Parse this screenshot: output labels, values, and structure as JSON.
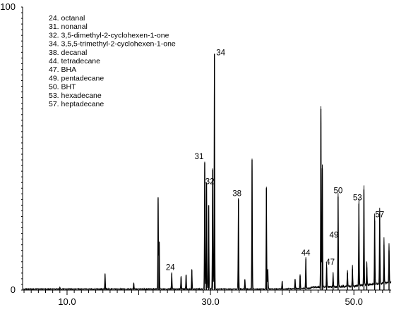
{
  "chart_data": {
    "type": "line",
    "title": "",
    "xlabel": "",
    "ylabel": "",
    "xlim": [
      3.8,
      55.2
    ],
    "ylim": [
      0,
      100
    ],
    "x_ticks": [
      {
        "value": 10.0,
        "label": "10.0"
      },
      {
        "value": 30.0,
        "label": "30.0"
      },
      {
        "value": 50.0,
        "label": "50.0"
      }
    ],
    "y_ticks": [
      {
        "value": 100,
        "label": "100"
      },
      {
        "value": 0,
        "label": "0"
      }
    ],
    "legend": [
      "24. octanal",
      "31. nonanal",
      "32. 3,5-dimethyl-2-cyclohexen-1-one",
      "34. 3,5,5-trimethyl-2-cyclohexen-1-one",
      "38. decanal",
      "44. tetradecane",
      "47. BHA",
      "49. pentadecane",
      "50. BHT",
      "53. hexadecane",
      "57. heptadecane"
    ],
    "peaks": [
      {
        "x": 9.0,
        "y": 0.6
      },
      {
        "x": 15.3,
        "y": 5.5
      },
      {
        "x": 19.3,
        "y": 2.2
      },
      {
        "x": 22.7,
        "y": 32.5
      },
      {
        "x": 22.85,
        "y": 17.0
      },
      {
        "x": 24.6,
        "y": 5.8
      },
      {
        "x": 25.9,
        "y": 4.5
      },
      {
        "x": 26.6,
        "y": 5.2
      },
      {
        "x": 27.4,
        "y": 7.0
      },
      {
        "x": 29.2,
        "y": 45.0
      },
      {
        "x": 29.45,
        "y": 38.0
      },
      {
        "x": 29.75,
        "y": 30.0
      },
      {
        "x": 30.3,
        "y": 42.5
      },
      {
        "x": 30.55,
        "y": 83.5
      },
      {
        "x": 33.9,
        "y": 32.0
      },
      {
        "x": 34.8,
        "y": 3.5
      },
      {
        "x": 35.8,
        "y": 46.0
      },
      {
        "x": 37.8,
        "y": 36.0
      },
      {
        "x": 38.0,
        "y": 7.0
      },
      {
        "x": 40.0,
        "y": 3.0
      },
      {
        "x": 41.8,
        "y": 3.5
      },
      {
        "x": 42.5,
        "y": 5.0
      },
      {
        "x": 43.3,
        "y": 11.0
      },
      {
        "x": 45.4,
        "y": 64.0
      },
      {
        "x": 45.6,
        "y": 43.0
      },
      {
        "x": 46.2,
        "y": 8.0
      },
      {
        "x": 47.1,
        "y": 5.0
      },
      {
        "x": 47.8,
        "y": 33.0
      },
      {
        "x": 49.1,
        "y": 6.0
      },
      {
        "x": 49.8,
        "y": 7.5
      },
      {
        "x": 50.7,
        "y": 30.5
      },
      {
        "x": 51.4,
        "y": 35.5
      },
      {
        "x": 51.8,
        "y": 8.0
      },
      {
        "x": 52.9,
        "y": 24.5
      },
      {
        "x": 53.6,
        "y": 27.0
      },
      {
        "x": 54.2,
        "y": 16.0
      },
      {
        "x": 54.9,
        "y": 14.0
      }
    ],
    "peak_labels": [
      {
        "text": "24",
        "x": 24.6,
        "y": 5.8
      },
      {
        "text": "31",
        "x": 29.2,
        "y": 45.0
      },
      {
        "text": "32",
        "x": 30.3,
        "y": 36.5
      },
      {
        "text": "34",
        "x": 30.55,
        "y": 83.5
      },
      {
        "text": "38",
        "x": 33.9,
        "y": 32.0
      },
      {
        "text": "44",
        "x": 43.3,
        "y": 11.0
      },
      {
        "text": "47",
        "x": 46.2,
        "y": 8.0
      },
      {
        "text": "49",
        "x": 47.8,
        "y": 17.5
      },
      {
        "text": "50",
        "x": 47.8,
        "y": 33.0
      },
      {
        "text": "53",
        "x": 50.7,
        "y": 30.5
      },
      {
        "text": "57",
        "x": 53.6,
        "y": 24.5
      }
    ]
  }
}
